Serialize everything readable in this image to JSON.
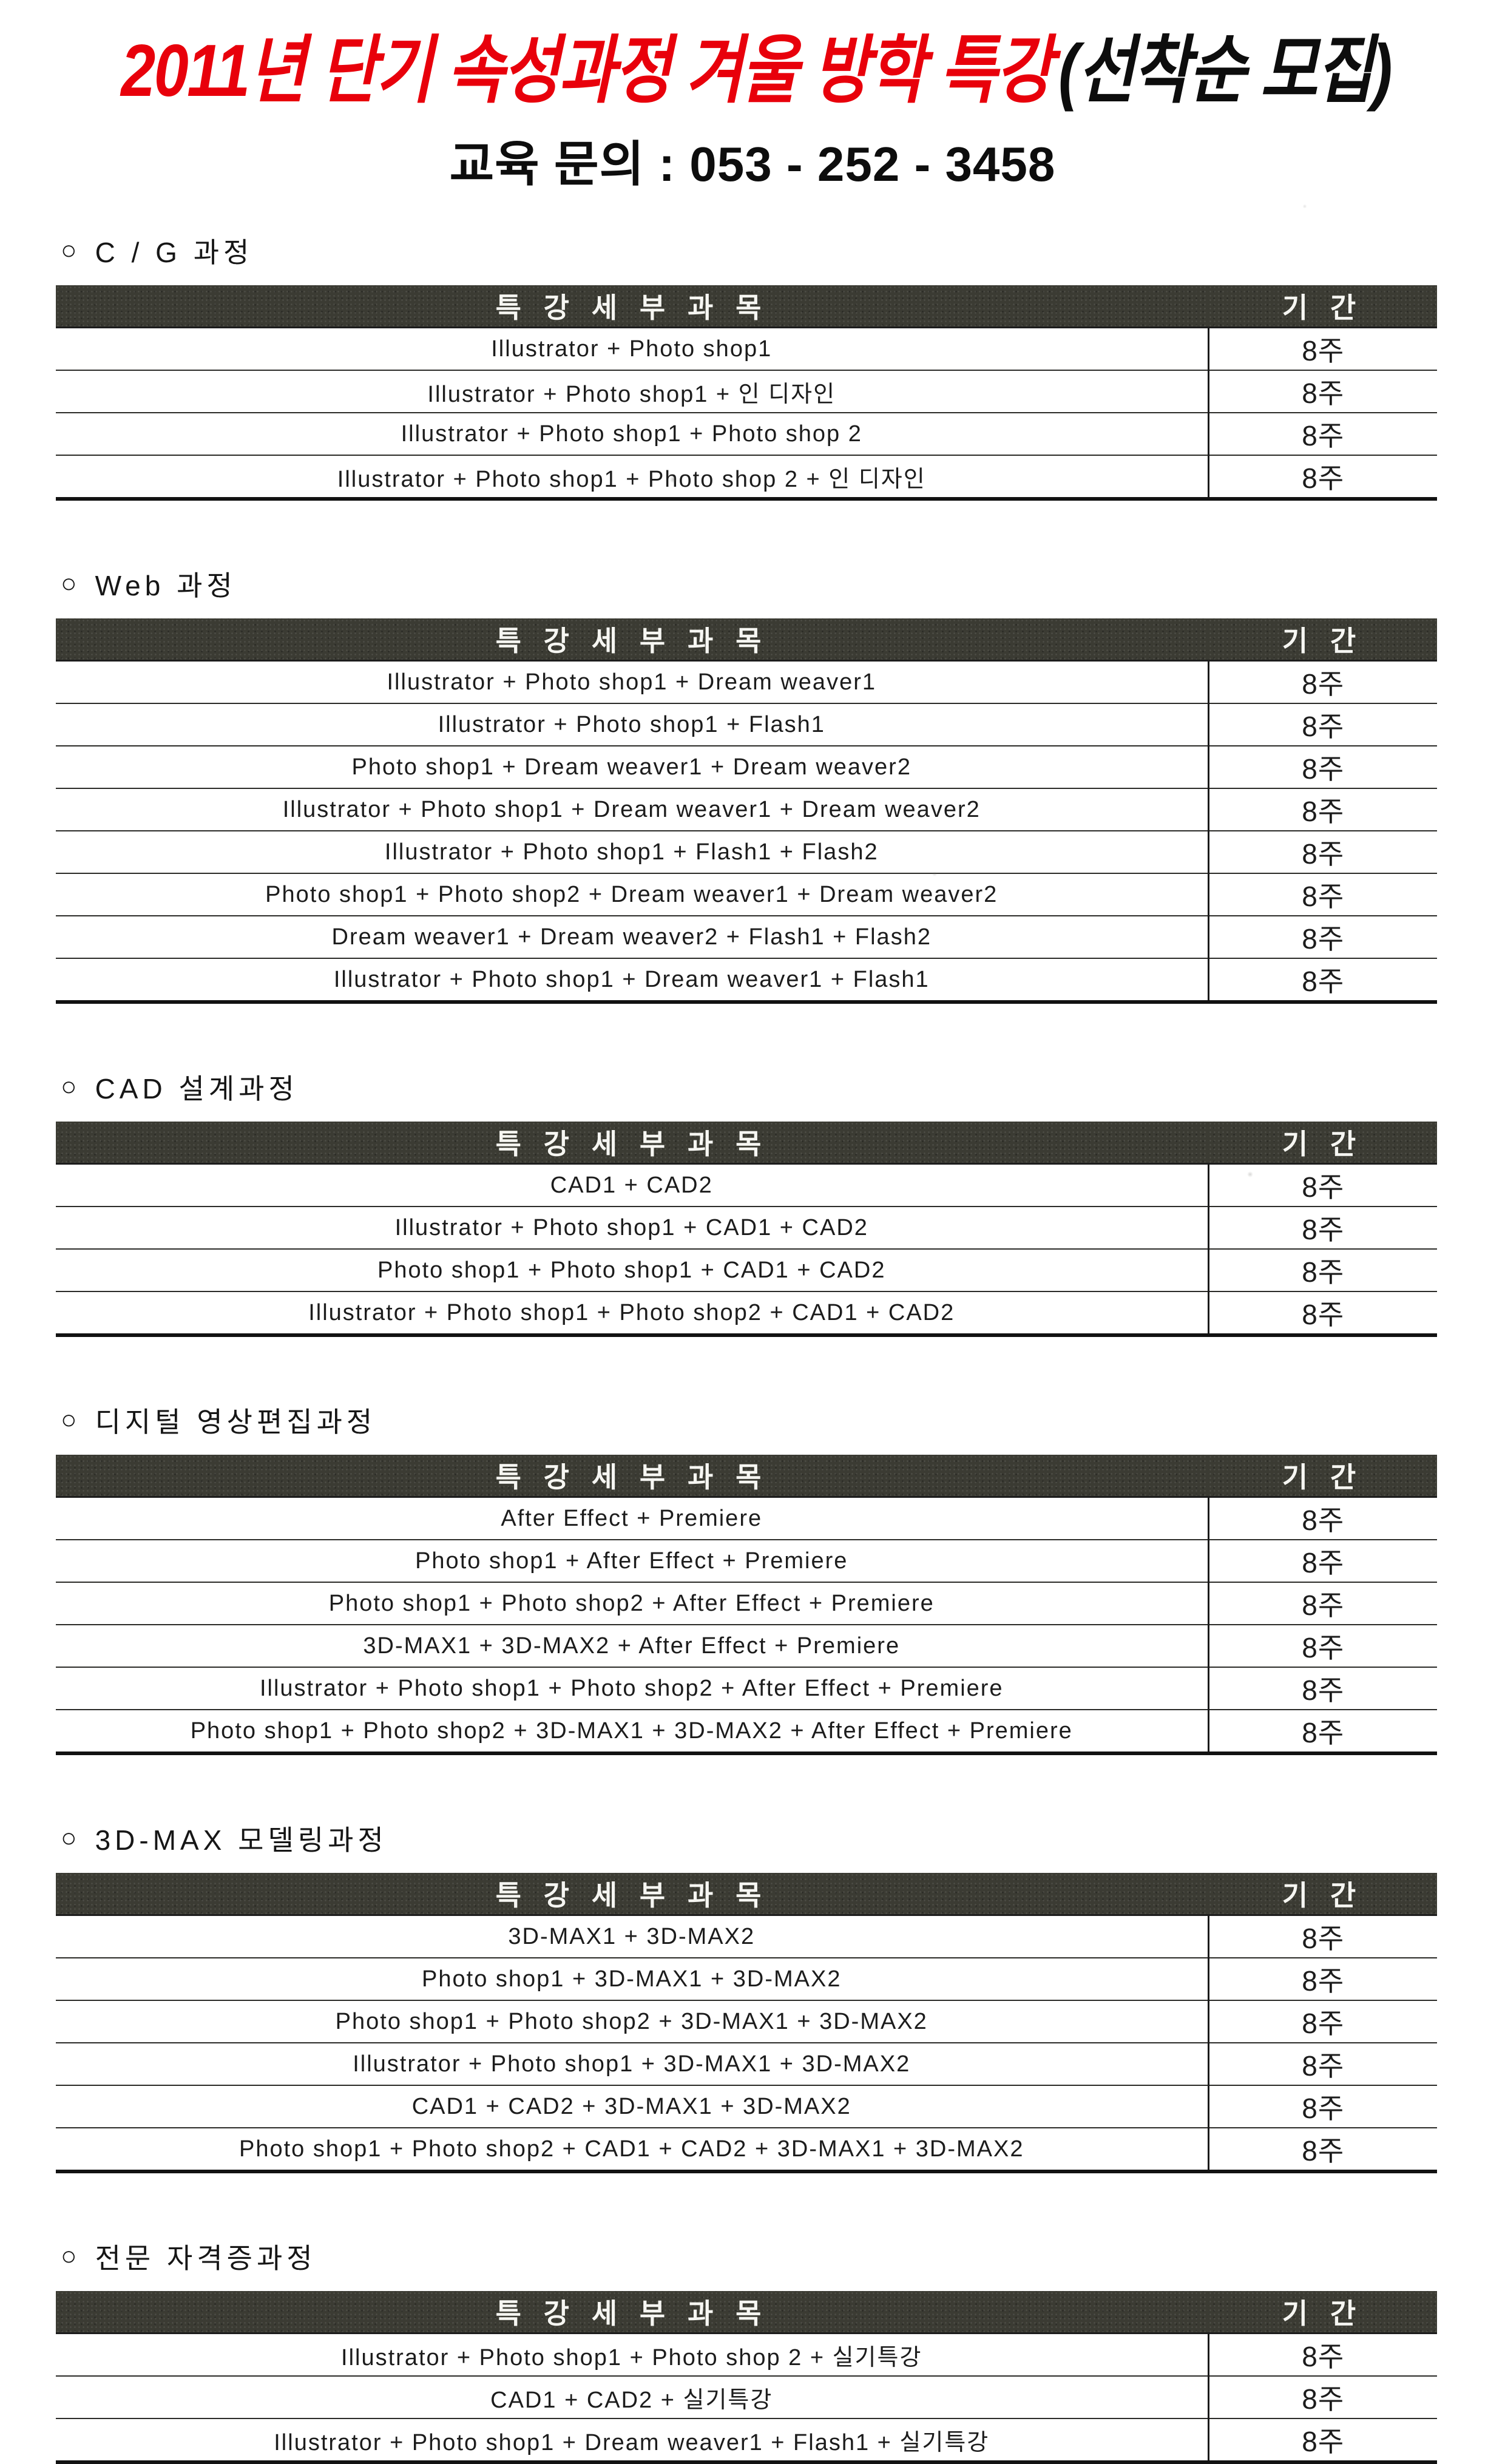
{
  "header": {
    "title_red": "2011년 단기 속성과정 겨울 방학 특강",
    "title_black": "(선착순 모집)",
    "subtitle": "교육 문의 : 053 - 252 - 3458"
  },
  "bullet": "○",
  "table_headers": {
    "subject": "특 강 세 부 과 목",
    "duration": "기 간"
  },
  "colors": {
    "title_red": "#e8000b",
    "header_bar": "#3b3b33",
    "text": "#1a1a1a"
  },
  "sections": [
    {
      "title": "C / G 과정",
      "rows": [
        {
          "subject": "Illustrator + Photo shop1",
          "duration": "8주"
        },
        {
          "subject": "Illustrator + Photo shop1 + 인 디자인",
          "duration": "8주"
        },
        {
          "subject": "Illustrator + Photo shop1 + Photo shop 2",
          "duration": "8주"
        },
        {
          "subject": "Illustrator + Photo shop1 + Photo shop 2 + 인 디자인",
          "duration": "8주"
        }
      ]
    },
    {
      "title": "Web 과정",
      "rows": [
        {
          "subject": "Illustrator + Photo shop1 + Dream weaver1",
          "duration": "8주"
        },
        {
          "subject": "Illustrator + Photo shop1 + Flash1",
          "duration": "8주"
        },
        {
          "subject": "Photo shop1 + Dream weaver1 + Dream weaver2",
          "duration": "8주"
        },
        {
          "subject": "Illustrator + Photo shop1 + Dream weaver1 + Dream weaver2",
          "duration": "8주"
        },
        {
          "subject": "Illustrator + Photo shop1 + Flash1 + Flash2",
          "duration": "8주"
        },
        {
          "subject": "Photo shop1 + Photo shop2 + Dream weaver1 + Dream weaver2",
          "duration": "8주"
        },
        {
          "subject": "Dream weaver1 + Dream weaver2 + Flash1 + Flash2",
          "duration": "8주"
        },
        {
          "subject": "Illustrator + Photo shop1 + Dream weaver1 + Flash1",
          "duration": "8주"
        }
      ]
    },
    {
      "title": "CAD 설계과정",
      "rows": [
        {
          "subject": "CAD1 + CAD2",
          "duration": "8주"
        },
        {
          "subject": "Illustrator + Photo shop1 + CAD1 + CAD2",
          "duration": "8주"
        },
        {
          "subject": "Photo shop1 + Photo shop1 + CAD1 + CAD2",
          "duration": "8주"
        },
        {
          "subject": "Illustrator + Photo shop1 + Photo shop2 + CAD1 + CAD2",
          "duration": "8주"
        }
      ]
    },
    {
      "title": "디지털 영상편집과정",
      "rows": [
        {
          "subject": "After Effect + Premiere",
          "duration": "8주"
        },
        {
          "subject": "Photo shop1 + After Effect + Premiere",
          "duration": "8주"
        },
        {
          "subject": "Photo shop1 + Photo shop2 + After Effect + Premiere",
          "duration": "8주"
        },
        {
          "subject": "3D-MAX1 + 3D-MAX2 + After Effect + Premiere",
          "duration": "8주"
        },
        {
          "subject": "Illustrator + Photo shop1 + Photo shop2 + After Effect + Premiere",
          "duration": "8주"
        },
        {
          "subject": "Photo shop1 + Photo shop2 + 3D-MAX1 + 3D-MAX2 + After Effect + Premiere",
          "duration": "8주"
        }
      ]
    },
    {
      "title": "3D-MAX 모델링과정",
      "rows": [
        {
          "subject": "3D-MAX1 + 3D-MAX2",
          "duration": "8주"
        },
        {
          "subject": "Photo shop1 + 3D-MAX1 + 3D-MAX2",
          "duration": "8주"
        },
        {
          "subject": "Photo shop1 + Photo shop2 + 3D-MAX1 + 3D-MAX2",
          "duration": "8주"
        },
        {
          "subject": "Illustrator + Photo shop1 + 3D-MAX1 + 3D-MAX2",
          "duration": "8주"
        },
        {
          "subject": "CAD1 + CAD2 + 3D-MAX1 + 3D-MAX2",
          "duration": "8주"
        },
        {
          "subject": "Photo shop1 + Photo shop2 + CAD1 + CAD2 + 3D-MAX1 + 3D-MAX2",
          "duration": "8주"
        }
      ]
    },
    {
      "title": "전문 자격증과정",
      "rows": [
        {
          "subject": "Illustrator + Photo shop1 + Photo shop 2 + 실기특강",
          "duration": "8주"
        },
        {
          "subject": "CAD1 + CAD2 + 실기특강",
          "duration": "8주"
        },
        {
          "subject": "Illustrator + Photo shop1 + Dream weaver1 + Flash1 + 실기특강",
          "duration": "8주"
        }
      ]
    }
  ]
}
